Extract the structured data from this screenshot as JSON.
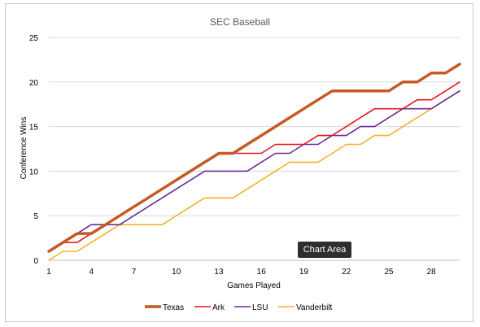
{
  "chart_data": {
    "type": "line",
    "title": "SEC Baseball",
    "xlabel": "Games Played",
    "ylabel": "Conference Wins",
    "x": [
      1,
      2,
      3,
      4,
      5,
      6,
      7,
      8,
      9,
      10,
      11,
      12,
      13,
      14,
      15,
      16,
      17,
      18,
      19,
      20,
      21,
      22,
      23,
      24,
      25,
      26,
      27,
      28,
      29,
      30
    ],
    "xticks": [
      1,
      4,
      7,
      10,
      13,
      16,
      19,
      22,
      25,
      28
    ],
    "ylim": [
      0,
      25
    ],
    "yticks": [
      0,
      5,
      10,
      15,
      20,
      25
    ],
    "grid": "horizontal",
    "legend_position": "bottom",
    "series": [
      {
        "name": "Texas",
        "color": "#c55a24",
        "values": [
          1,
          2,
          3,
          3,
          4,
          5,
          6,
          7,
          8,
          9,
          10,
          11,
          12,
          12,
          13,
          14,
          15,
          16,
          17,
          18,
          19,
          19,
          19,
          19,
          19,
          20,
          20,
          21,
          21,
          22
        ]
      },
      {
        "name": "Ark",
        "color": "#e8141e",
        "values": [
          1,
          2,
          2,
          3,
          4,
          5,
          6,
          7,
          8,
          9,
          10,
          11,
          12,
          12,
          12,
          12,
          13,
          13,
          13,
          14,
          14,
          15,
          16,
          17,
          17,
          17,
          18,
          18,
          19,
          20
        ]
      },
      {
        "name": "LSU",
        "color": "#6a2b9a",
        "values": [
          1,
          2,
          3,
          4,
          4,
          4,
          5,
          6,
          7,
          8,
          9,
          10,
          10,
          10,
          10,
          11,
          12,
          12,
          13,
          13,
          14,
          14,
          15,
          15,
          16,
          17,
          17,
          17,
          18,
          19
        ]
      },
      {
        "name": "Vanderbilt",
        "color": "#f5b22a",
        "values": [
          0,
          1,
          1,
          2,
          3,
          4,
          4,
          4,
          4,
          5,
          6,
          7,
          7,
          7,
          8,
          9,
          10,
          11,
          11,
          11,
          12,
          13,
          13,
          14,
          14,
          15,
          16,
          17,
          18,
          19
        ]
      }
    ]
  },
  "tooltip": {
    "label": "Chart Area"
  }
}
